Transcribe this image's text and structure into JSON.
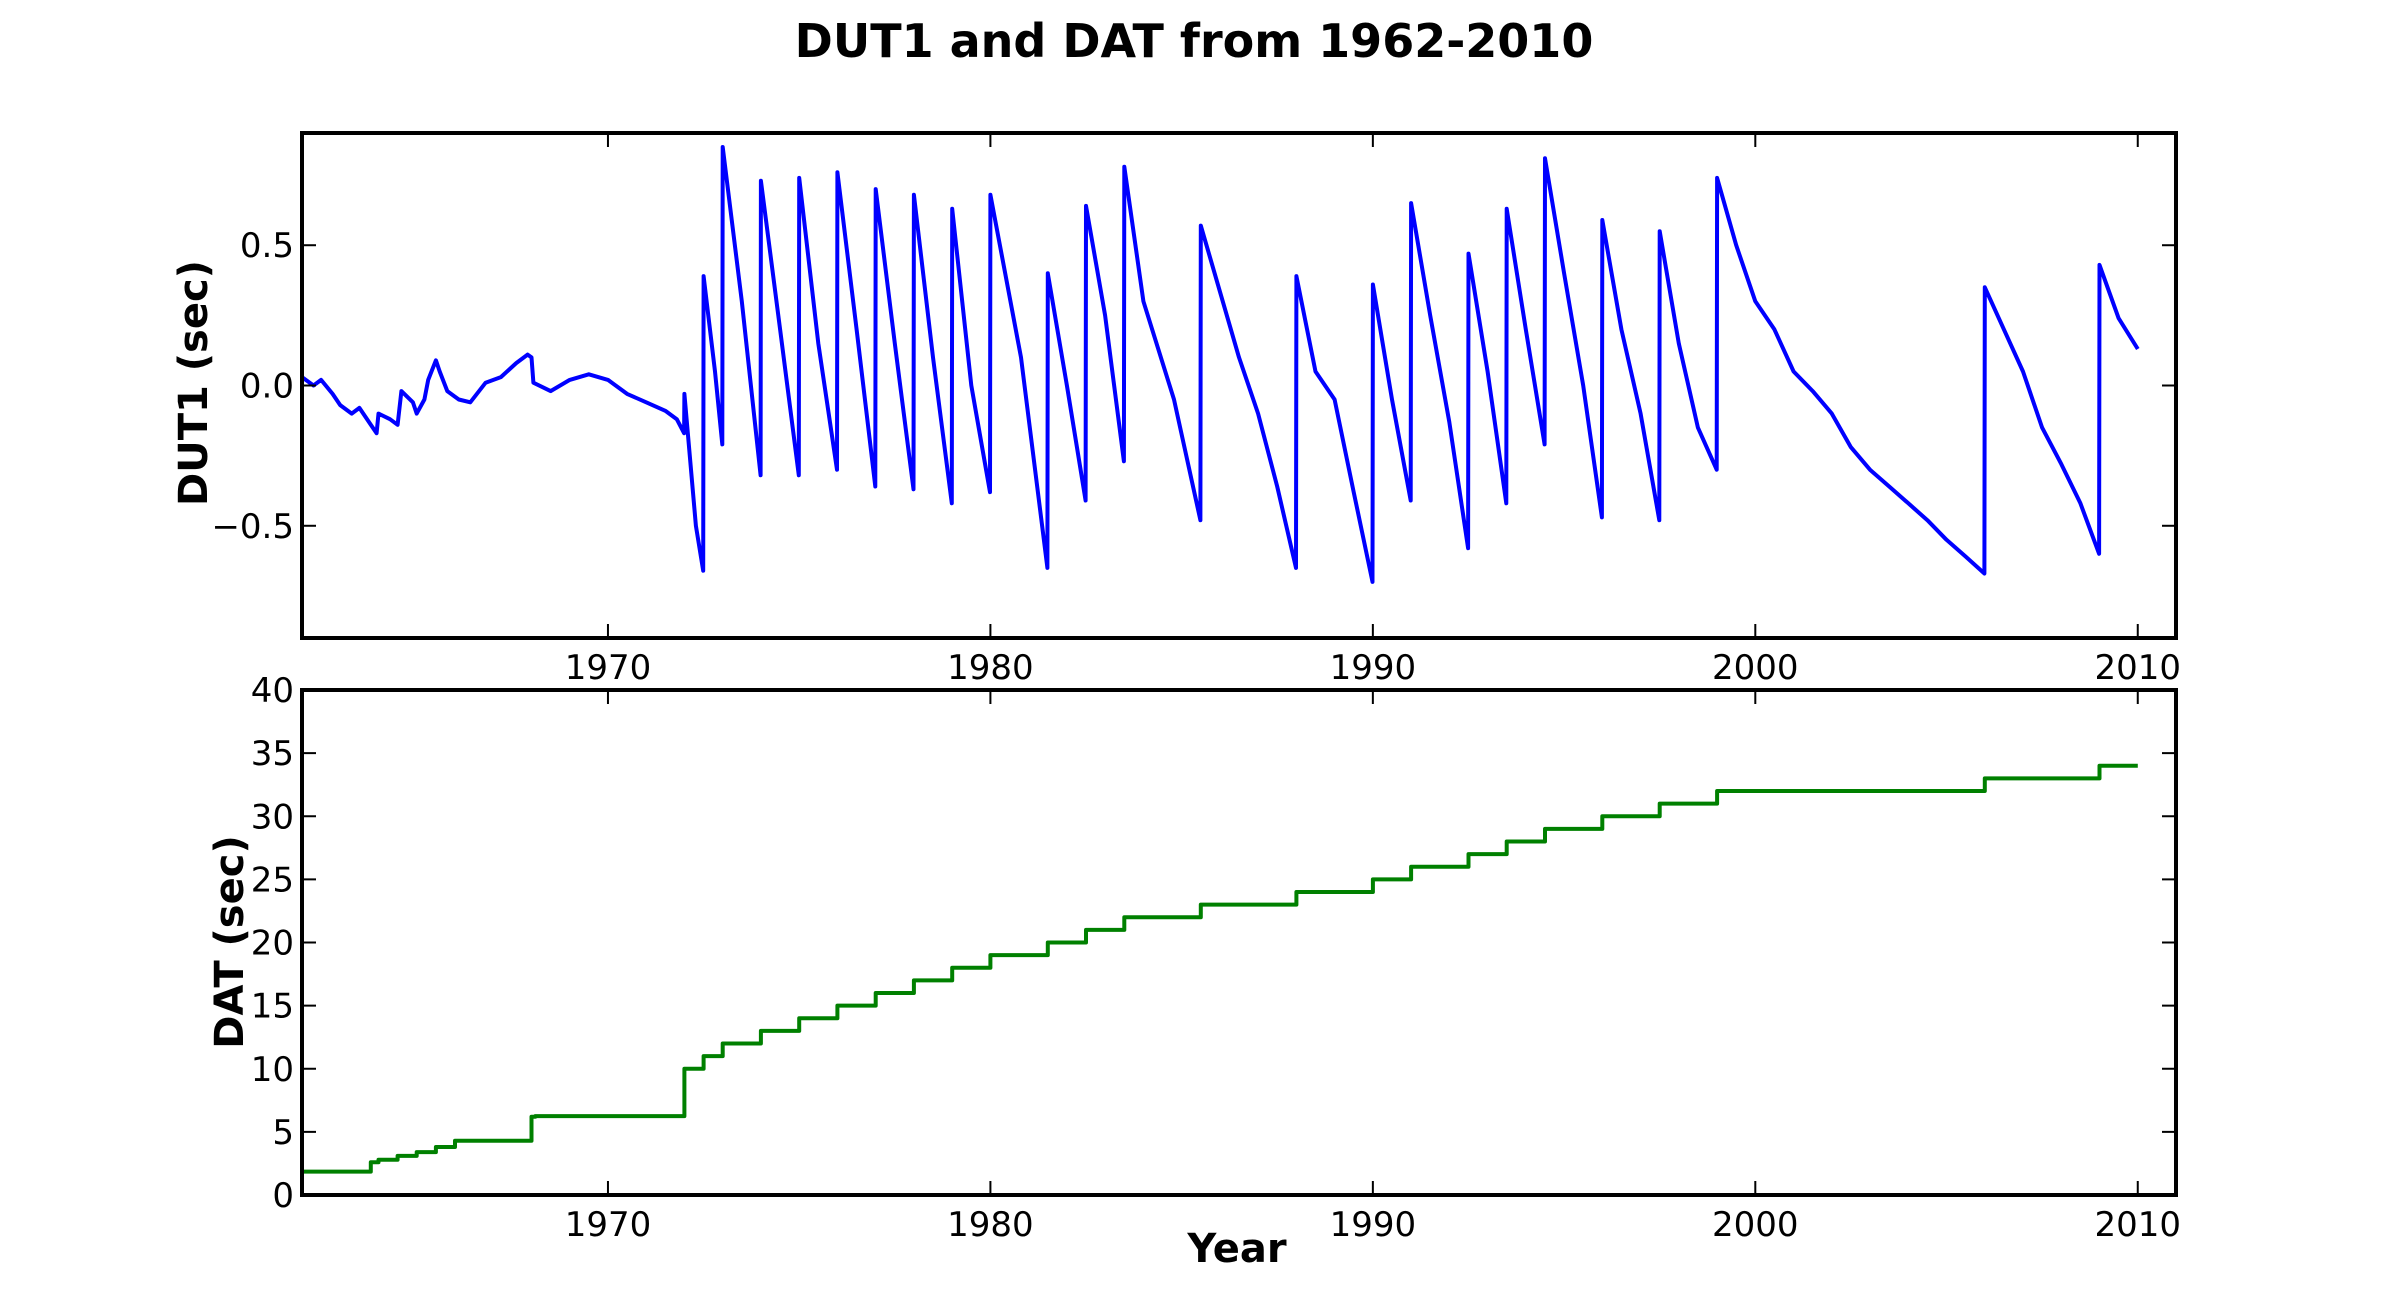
{
  "figure": {
    "title": "DUT1 and DAT from 1962-2010"
  },
  "colors": {
    "dut1_line": "#0000ff",
    "dat_line": "#008000",
    "axes": "#000000",
    "background": "#ffffff"
  },
  "chart_data": [
    {
      "type": "line",
      "title": "",
      "xlabel": "",
      "ylabel": "DUT1 (sec)",
      "xlim": [
        1962,
        2011
      ],
      "ylim": [
        -0.9,
        0.9
      ],
      "xticks": [
        1970,
        1980,
        1990,
        2000,
        2010
      ],
      "xtick_labels": [
        "1970",
        "1980",
        "1990",
        "2000",
        "2010"
      ],
      "yticks": [
        -0.5,
        0.0,
        0.5
      ],
      "ytick_labels": [
        "−0.5",
        "0.0",
        "0.5"
      ],
      "grid": false,
      "series": [
        {
          "x": [
            1962.0,
            1962.3,
            1962.5,
            1962.8,
            1963.0,
            1963.3,
            1963.5,
            1963.8,
            1963.95,
            1964.0,
            1964.3,
            1964.5,
            1964.6,
            1964.9,
            1965.0,
            1965.2,
            1965.3,
            1965.5,
            1965.6,
            1965.8,
            1966.0,
            1966.1,
            1966.4,
            1966.8,
            1967.2,
            1967.6,
            1967.9,
            1968.0,
            1968.05,
            1968.5,
            1969.0,
            1969.5,
            1970.0,
            1970.5,
            1971.0,
            1971.5,
            1971.8,
            1971.99,
            1972.0,
            1972.3,
            1972.49,
            1972.5,
            1972.8,
            1972.99,
            1973.0,
            1973.5,
            1973.99,
            1974.0,
            1974.5,
            1974.99,
            1975.0,
            1975.5,
            1975.99,
            1976.0,
            1976.5,
            1976.99,
            1977.0,
            1977.5,
            1977.99,
            1978.0,
            1978.5,
            1978.99,
            1979.0,
            1979.5,
            1979.99,
            1980.0,
            1980.8,
            1981.49,
            1981.5,
            1982.0,
            1982.49,
            1982.5,
            1983.0,
            1983.49,
            1983.5,
            1984.0,
            1984.8,
            1985.49,
            1985.5,
            1986.5,
            1987.0,
            1987.5,
            1987.99,
            1988.0,
            1988.5,
            1989.0,
            1989.5,
            1989.99,
            1990.0,
            1990.5,
            1990.99,
            1991.0,
            1991.5,
            1992.0,
            1992.49,
            1992.5,
            1993.0,
            1993.49,
            1993.5,
            1994.0,
            1994.49,
            1994.5,
            1995.0,
            1995.5,
            1995.99,
            1996.0,
            1996.5,
            1997.0,
            1997.49,
            1997.5,
            1998.0,
            1998.5,
            1998.99,
            1999.0,
            1999.5,
            2000.0,
            2000.5,
            2001.0,
            2001.5,
            2002.0,
            2002.5,
            2003.0,
            2003.5,
            2004.0,
            2004.5,
            2005.0,
            2005.5,
            2005.99,
            2006.0,
            2006.5,
            2007.0,
            2007.5,
            2008.0,
            2008.5,
            2008.99,
            2009.0,
            2009.5,
            2010.0
          ],
          "values": [
            0.03,
            0.0,
            0.02,
            -0.03,
            -0.07,
            -0.1,
            -0.08,
            -0.14,
            -0.17,
            -0.1,
            -0.12,
            -0.14,
            -0.02,
            -0.06,
            -0.1,
            -0.05,
            0.02,
            0.09,
            0.05,
            -0.02,
            -0.04,
            -0.05,
            -0.06,
            0.01,
            0.03,
            0.08,
            0.11,
            0.1,
            0.01,
            -0.02,
            0.02,
            0.04,
            0.02,
            -0.03,
            -0.06,
            -0.09,
            -0.12,
            -0.17,
            -0.03,
            -0.5,
            -0.66,
            0.39,
            0.05,
            -0.21,
            0.85,
            0.3,
            -0.32,
            0.73,
            0.2,
            -0.32,
            0.74,
            0.15,
            -0.3,
            0.76,
            0.2,
            -0.36,
            0.7,
            0.15,
            -0.37,
            0.68,
            0.1,
            -0.42,
            0.63,
            0.0,
            -0.38,
            0.68,
            0.1,
            -0.65,
            0.4,
            0.0,
            -0.41,
            0.64,
            0.25,
            -0.27,
            0.78,
            0.3,
            -0.05,
            -0.48,
            0.57,
            0.1,
            -0.1,
            -0.36,
            -0.65,
            0.39,
            0.05,
            -0.05,
            -0.38,
            -0.7,
            0.36,
            -0.05,
            -0.41,
            0.65,
            0.25,
            -0.13,
            -0.58,
            0.47,
            0.05,
            -0.42,
            0.63,
            0.2,
            -0.21,
            0.81,
            0.4,
            0.0,
            -0.47,
            0.59,
            0.2,
            -0.1,
            -0.48,
            0.55,
            0.15,
            -0.15,
            -0.3,
            0.74,
            0.5,
            0.3,
            0.2,
            0.05,
            -0.02,
            -0.1,
            -0.22,
            -0.3,
            -0.36,
            -0.42,
            -0.48,
            -0.55,
            -0.61,
            -0.67,
            0.35,
            0.2,
            0.05,
            -0.15,
            -0.28,
            -0.42,
            -0.6,
            0.43,
            0.24,
            0.13
          ]
        }
      ]
    },
    {
      "type": "line",
      "title": "",
      "xlabel": "Year",
      "ylabel": "DAT (sec)",
      "xlim": [
        1962,
        2011
      ],
      "ylim": [
        0,
        40
      ],
      "xticks": [
        1970,
        1980,
        1990,
        2000,
        2010
      ],
      "xtick_labels": [
        "1970",
        "1980",
        "1990",
        "2000",
        "2010"
      ],
      "yticks": [
        0,
        5,
        10,
        15,
        20,
        25,
        30,
        35,
        40
      ],
      "ytick_labels": [
        "0",
        "5",
        "10",
        "15",
        "20",
        "25",
        "30",
        "35",
        "40"
      ],
      "grid": false,
      "series": [
        {
          "x": [
            1962.0,
            1963.8,
            1964.0,
            1964.5,
            1965.0,
            1965.5,
            1966.0,
            1968.0,
            1968.1,
            1972.0,
            1972.5,
            1973.0,
            1974.0,
            1975.0,
            1976.0,
            1977.0,
            1978.0,
            1979.0,
            1980.0,
            1981.5,
            1982.5,
            1983.5,
            1985.5,
            1988.0,
            1990.0,
            1991.0,
            1992.5,
            1993.5,
            1994.5,
            1996.0,
            1997.5,
            1999.0,
            2006.0,
            2009.0,
            2010.0
          ],
          "values": [
            1.85,
            2.6,
            2.8,
            3.1,
            3.4,
            3.8,
            4.3,
            6.2,
            6.25,
            10,
            11,
            12,
            13,
            14,
            15,
            16,
            17,
            18,
            19,
            20,
            21,
            22,
            23,
            24,
            25,
            26,
            27,
            28,
            29,
            30,
            31,
            32,
            33,
            34,
            34
          ],
          "step": "post"
        }
      ]
    }
  ]
}
